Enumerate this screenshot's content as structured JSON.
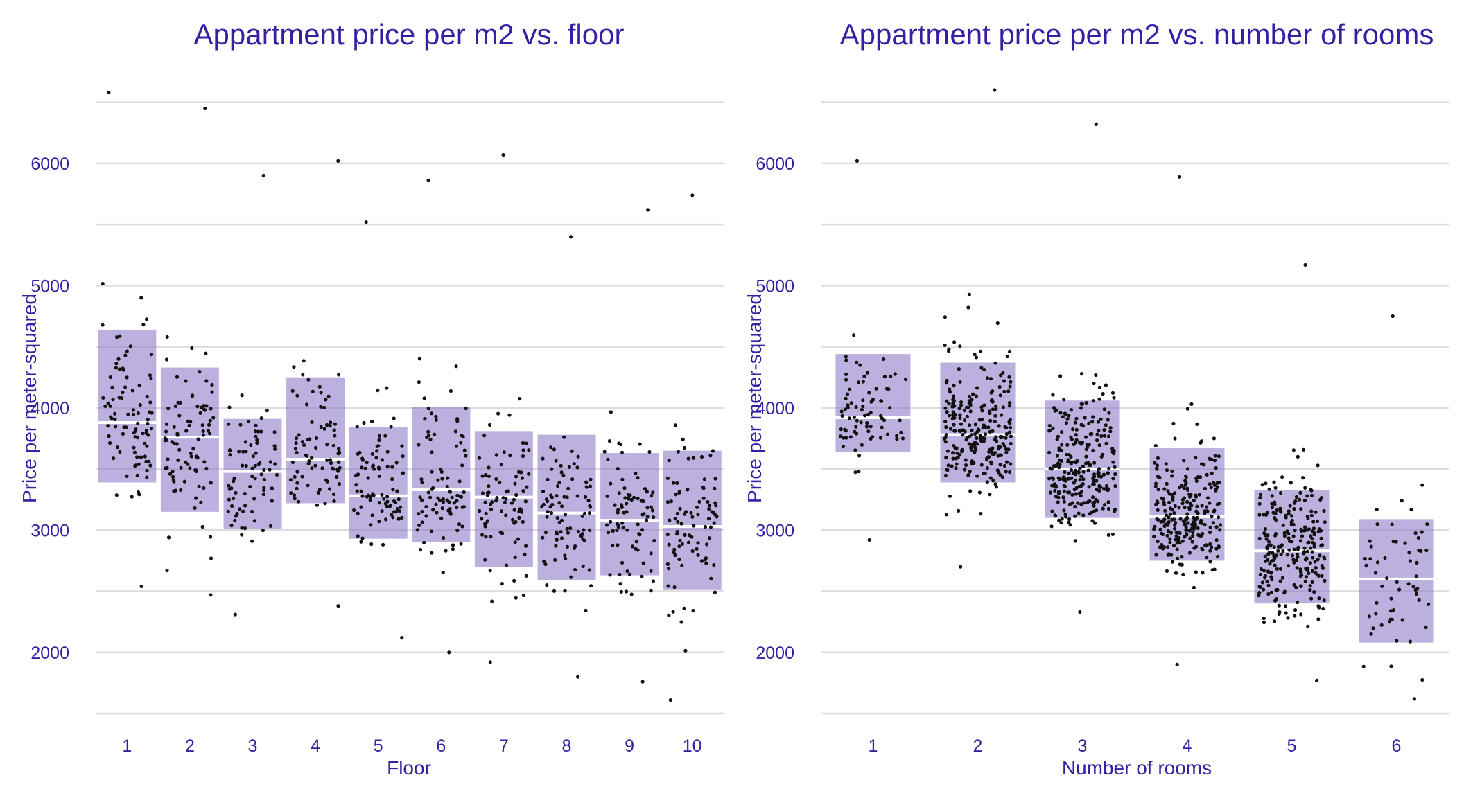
{
  "colors": {
    "text": "#371ea3",
    "box": "#8f7cc8",
    "grid": "#dcdcdc",
    "point": "#111111",
    "median": "#ffffff"
  },
  "chart_data": [
    {
      "type": "box-jitter",
      "title": "Appartment price per m2 vs. floor",
      "xlabel": "Floor",
      "ylabel": "Price per meter-squared",
      "categories": [
        "1",
        "2",
        "3",
        "4",
        "5",
        "6",
        "7",
        "8",
        "9",
        "10"
      ],
      "ylim": [
        1500,
        6600
      ],
      "yticks": [
        2000,
        3000,
        4000,
        5000,
        6000
      ],
      "grid": true,
      "boxes": [
        {
          "q1": 3390,
          "median": 3880,
          "q3": 4640,
          "min": 2540,
          "max": 6580
        },
        {
          "q1": 3150,
          "median": 3760,
          "q3": 4330,
          "min": 2470,
          "max": 6450
        },
        {
          "q1": 3010,
          "median": 3480,
          "q3": 3910,
          "min": 2310,
          "max": 5900
        },
        {
          "q1": 3220,
          "median": 3580,
          "q3": 4250,
          "min": 2380,
          "max": 6020
        },
        {
          "q1": 2930,
          "median": 3280,
          "q3": 3840,
          "min": 2120,
          "max": 5520
        },
        {
          "q1": 2900,
          "median": 3330,
          "q3": 4010,
          "min": 2000,
          "max": 5860
        },
        {
          "q1": 2700,
          "median": 3270,
          "q3": 3810,
          "min": 1920,
          "max": 6070
        },
        {
          "q1": 2590,
          "median": 3140,
          "q3": 3780,
          "min": 1800,
          "max": 5400
        },
        {
          "q1": 2630,
          "median": 3080,
          "q3": 3630,
          "min": 1760,
          "max": 5620
        },
        {
          "q1": 2510,
          "median": 3030,
          "q3": 3650,
          "min": 1610,
          "max": 5740
        }
      ],
      "points_per_category": [
        92,
        90,
        78,
        84,
        88,
        92,
        90,
        92,
        86,
        94
      ]
    },
    {
      "type": "box-jitter",
      "title": "Appartment price per m2 vs. number of rooms",
      "xlabel": "Number of rooms",
      "ylabel": "Price per meter-squared",
      "categories": [
        "1",
        "2",
        "3",
        "4",
        "5",
        "6"
      ],
      "ylim": [
        1500,
        6600
      ],
      "yticks": [
        2000,
        3000,
        4000,
        5000,
        6000
      ],
      "grid": true,
      "boxes": [
        {
          "q1": 3640,
          "median": 3920,
          "q3": 4440,
          "min": 2920,
          "max": 6020
        },
        {
          "q1": 3390,
          "median": 3780,
          "q3": 4370,
          "min": 2700,
          "max": 6600
        },
        {
          "q1": 3100,
          "median": 3500,
          "q3": 4060,
          "min": 2330,
          "max": 6320
        },
        {
          "q1": 2750,
          "median": 3110,
          "q3": 3670,
          "min": 1900,
          "max": 5890
        },
        {
          "q1": 2400,
          "median": 2830,
          "q3": 3330,
          "min": 1770,
          "max": 5170
        },
        {
          "q1": 2080,
          "median": 2600,
          "q3": 3090,
          "min": 1620,
          "max": 4750
        }
      ],
      "points_per_category": [
        80,
        250,
        260,
        250,
        250,
        60
      ]
    }
  ]
}
